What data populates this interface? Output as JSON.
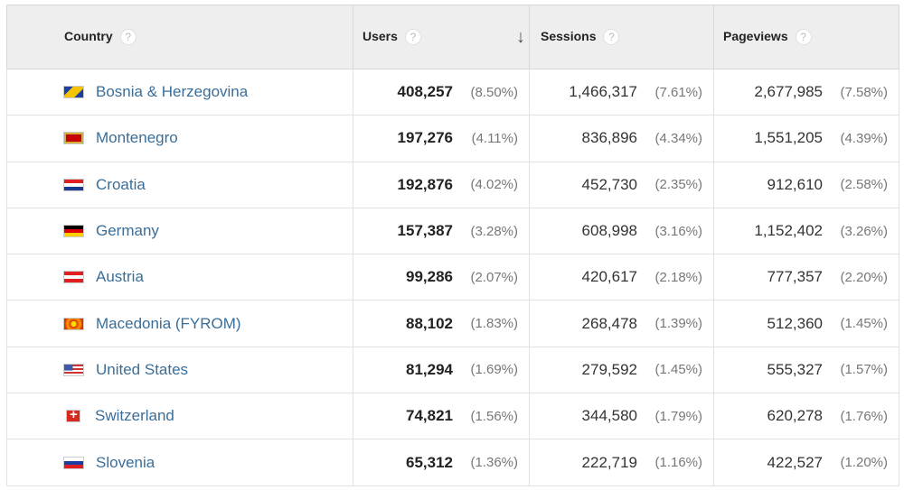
{
  "headers": {
    "country": "Country",
    "users": "Users",
    "sessions": "Sessions",
    "pageviews": "Pageviews",
    "help": "?",
    "sort": "↓"
  },
  "rows": [
    {
      "flag": "ba",
      "country": "Bosnia & Herzegovina",
      "users": "408,257",
      "users_pct": "(8.50%)",
      "sessions": "1,466,317",
      "sessions_pct": "(7.61%)",
      "pageviews": "2,677,985",
      "pageviews_pct": "(7.58%)"
    },
    {
      "flag": "me",
      "country": "Montenegro",
      "users": "197,276",
      "users_pct": "(4.11%)",
      "sessions": "836,896",
      "sessions_pct": "(4.34%)",
      "pageviews": "1,551,205",
      "pageviews_pct": "(4.39%)"
    },
    {
      "flag": "hr",
      "country": "Croatia",
      "users": "192,876",
      "users_pct": "(4.02%)",
      "sessions": "452,730",
      "sessions_pct": "(2.35%)",
      "pageviews": "912,610",
      "pageviews_pct": "(2.58%)"
    },
    {
      "flag": "de",
      "country": "Germany",
      "users": "157,387",
      "users_pct": "(3.28%)",
      "sessions": "608,998",
      "sessions_pct": "(3.16%)",
      "pageviews": "1,152,402",
      "pageviews_pct": "(3.26%)"
    },
    {
      "flag": "at",
      "country": "Austria",
      "users": "99,286",
      "users_pct": "(2.07%)",
      "sessions": "420,617",
      "sessions_pct": "(2.18%)",
      "pageviews": "777,357",
      "pageviews_pct": "(2.20%)"
    },
    {
      "flag": "mk",
      "country": "Macedonia (FYROM)",
      "users": "88,102",
      "users_pct": "(1.83%)",
      "sessions": "268,478",
      "sessions_pct": "(1.39%)",
      "pageviews": "512,360",
      "pageviews_pct": "(1.45%)"
    },
    {
      "flag": "us",
      "country": "United States",
      "users": "81,294",
      "users_pct": "(1.69%)",
      "sessions": "279,592",
      "sessions_pct": "(1.45%)",
      "pageviews": "555,327",
      "pageviews_pct": "(1.57%)"
    },
    {
      "flag": "ch",
      "country": "Switzerland",
      "users": "74,821",
      "users_pct": "(1.56%)",
      "sessions": "344,580",
      "sessions_pct": "(1.79%)",
      "pageviews": "620,278",
      "pageviews_pct": "(1.76%)"
    },
    {
      "flag": "si",
      "country": "Slovenia",
      "users": "65,312",
      "users_pct": "(1.36%)",
      "sessions": "222,719",
      "sessions_pct": "(1.16%)",
      "pageviews": "422,527",
      "pageviews_pct": "(1.20%)"
    }
  ]
}
